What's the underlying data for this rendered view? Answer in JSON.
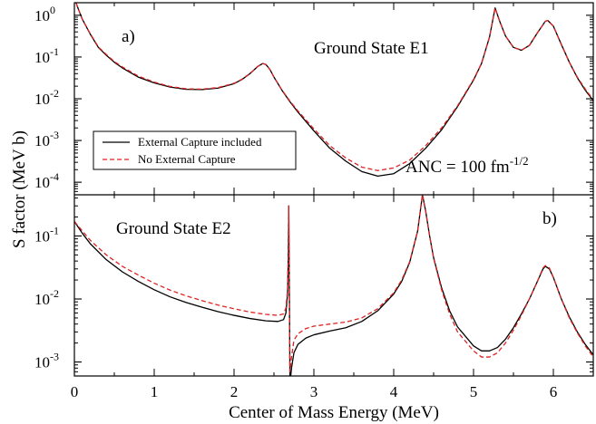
{
  "chart_data": [
    {
      "type": "line",
      "panel_label": "a)",
      "annotation": "Ground State E1",
      "anc_prefix": "ANC = 100 fm",
      "anc_exponent": "-1/2",
      "x_scale": "linear",
      "y_scale": "log",
      "xlim": [
        0,
        6.5
      ],
      "ylim": [
        5e-05,
        2.0
      ],
      "yticks": [
        {
          "value": 1,
          "base": "10",
          "exp": "0"
        },
        {
          "value": 0.1,
          "base": "10",
          "exp": "-1"
        },
        {
          "value": 0.01,
          "base": "10",
          "exp": "-2"
        },
        {
          "value": 0.001,
          "base": "10",
          "exp": "-3"
        },
        {
          "value": 0.0001,
          "base": "10",
          "exp": "-4"
        }
      ],
      "legend": {
        "placement": "center-left",
        "entries": [
          {
            "label": "External Capture included",
            "color": "#000000",
            "dash": "solid"
          },
          {
            "label": "No External Capture",
            "color": "#dd2222",
            "dash": "dashed"
          }
        ]
      },
      "series": [
        {
          "name": "External Capture included",
          "color": "#000000",
          "dash": "solid",
          "points": [
            [
              0.02,
              2.0
            ],
            [
              0.05,
              1.4
            ],
            [
              0.1,
              0.8
            ],
            [
              0.2,
              0.35
            ],
            [
              0.3,
              0.17
            ],
            [
              0.4,
              0.11
            ],
            [
              0.5,
              0.075
            ],
            [
              0.6,
              0.055
            ],
            [
              0.8,
              0.033
            ],
            [
              1.0,
              0.024
            ],
            [
              1.2,
              0.019
            ],
            [
              1.4,
              0.0168
            ],
            [
              1.6,
              0.0166
            ],
            [
              1.8,
              0.018
            ],
            [
              2.0,
              0.023
            ],
            [
              2.1,
              0.029
            ],
            [
              2.2,
              0.04
            ],
            [
              2.3,
              0.06
            ],
            [
              2.36,
              0.07
            ],
            [
              2.4,
              0.066
            ],
            [
              2.45,
              0.05
            ],
            [
              2.5,
              0.033
            ],
            [
              2.6,
              0.016
            ],
            [
              2.7,
              0.0085
            ],
            [
              2.8,
              0.0048
            ],
            [
              3.0,
              0.0017
            ],
            [
              3.2,
              0.00065
            ],
            [
              3.4,
              0.00032
            ],
            [
              3.6,
              0.00018
            ],
            [
              3.8,
              0.00014
            ],
            [
              4.0,
              0.00016
            ],
            [
              4.2,
              0.00028
            ],
            [
              4.4,
              0.00065
            ],
            [
              4.6,
              0.0018
            ],
            [
              4.8,
              0.0065
            ],
            [
              5.0,
              0.028
            ],
            [
              5.1,
              0.07
            ],
            [
              5.2,
              0.3
            ],
            [
              5.27,
              1.5
            ],
            [
              5.33,
              0.7
            ],
            [
              5.4,
              0.32
            ],
            [
              5.5,
              0.17
            ],
            [
              5.6,
              0.145
            ],
            [
              5.7,
              0.19
            ],
            [
              5.8,
              0.38
            ],
            [
              5.9,
              0.72
            ],
            [
              5.93,
              0.75
            ],
            [
              6.0,
              0.55
            ],
            [
              6.1,
              0.2
            ],
            [
              6.2,
              0.075
            ],
            [
              6.3,
              0.032
            ],
            [
              6.4,
              0.016
            ],
            [
              6.5,
              0.009
            ]
          ]
        },
        {
          "name": "No External Capture",
          "color": "#dd2222",
          "dash": "dashed",
          "points": [
            [
              0.02,
              2.0
            ],
            [
              0.05,
              1.4
            ],
            [
              0.1,
              0.8
            ],
            [
              0.2,
              0.36
            ],
            [
              0.3,
              0.175
            ],
            [
              0.4,
              0.115
            ],
            [
              0.5,
              0.078
            ],
            [
              0.6,
              0.058
            ],
            [
              0.8,
              0.035
            ],
            [
              1.0,
              0.025
            ],
            [
              1.2,
              0.0197
            ],
            [
              1.4,
              0.0173
            ],
            [
              1.6,
              0.017
            ],
            [
              1.8,
              0.0185
            ],
            [
              2.0,
              0.0235
            ],
            [
              2.1,
              0.0295
            ],
            [
              2.2,
              0.0405
            ],
            [
              2.3,
              0.06
            ],
            [
              2.36,
              0.07
            ],
            [
              2.4,
              0.066
            ],
            [
              2.45,
              0.05
            ],
            [
              2.5,
              0.033
            ],
            [
              2.6,
              0.0163
            ],
            [
              2.7,
              0.0088
            ],
            [
              2.8,
              0.0051
            ],
            [
              3.0,
              0.0019
            ],
            [
              3.2,
              0.00075
            ],
            [
              3.4,
              0.00038
            ],
            [
              3.6,
              0.00023
            ],
            [
              3.8,
              0.00019
            ],
            [
              4.0,
              0.00022
            ],
            [
              4.2,
              0.00034
            ],
            [
              4.4,
              0.00075
            ],
            [
              4.6,
              0.002
            ],
            [
              4.8,
              0.0068
            ],
            [
              5.0,
              0.029
            ],
            [
              5.1,
              0.07
            ],
            [
              5.2,
              0.3
            ],
            [
              5.27,
              1.5
            ],
            [
              5.33,
              0.7
            ],
            [
              5.4,
              0.32
            ],
            [
              5.5,
              0.17
            ],
            [
              5.6,
              0.147
            ],
            [
              5.7,
              0.19
            ],
            [
              5.8,
              0.38
            ],
            [
              5.9,
              0.72
            ],
            [
              5.93,
              0.75
            ],
            [
              6.0,
              0.55
            ],
            [
              6.1,
              0.2
            ],
            [
              6.2,
              0.075
            ],
            [
              6.3,
              0.033
            ],
            [
              6.4,
              0.017
            ],
            [
              6.5,
              0.0095
            ]
          ]
        }
      ]
    },
    {
      "type": "line",
      "panel_label": "b)",
      "annotation": "Ground State E2",
      "x_scale": "linear",
      "y_scale": "log",
      "xlim": [
        0,
        6.5
      ],
      "ylim": [
        0.0006,
        0.45
      ],
      "yticks": [
        {
          "value": 0.1,
          "base": "10",
          "exp": "-1"
        },
        {
          "value": 0.01,
          "base": "10",
          "exp": "-2"
        },
        {
          "value": 0.001,
          "base": "10",
          "exp": "-3"
        }
      ],
      "series": [
        {
          "name": "External Capture included",
          "color": "#000000",
          "dash": "solid",
          "points": [
            [
              0.0,
              0.17
            ],
            [
              0.1,
              0.11
            ],
            [
              0.2,
              0.075
            ],
            [
              0.4,
              0.042
            ],
            [
              0.6,
              0.027
            ],
            [
              0.8,
              0.019
            ],
            [
              1.0,
              0.014
            ],
            [
              1.2,
              0.0108
            ],
            [
              1.4,
              0.0088
            ],
            [
              1.6,
              0.0074
            ],
            [
              1.8,
              0.0063
            ],
            [
              2.0,
              0.0055
            ],
            [
              2.2,
              0.0049
            ],
            [
              2.4,
              0.0045
            ],
            [
              2.55,
              0.0044
            ],
            [
              2.62,
              0.0047
            ],
            [
              2.65,
              0.006
            ],
            [
              2.67,
              0.012
            ],
            [
              2.68,
              0.05
            ],
            [
              2.685,
              0.3
            ],
            [
              2.69,
              0.05
            ],
            [
              2.7,
              0.0006
            ],
            [
              2.71,
              0.0006
            ],
            [
              2.72,
              0.0008
            ],
            [
              2.75,
              0.0014
            ],
            [
              2.8,
              0.0019
            ],
            [
              2.9,
              0.0024
            ],
            [
              3.0,
              0.0027
            ],
            [
              3.2,
              0.0031
            ],
            [
              3.4,
              0.0035
            ],
            [
              3.6,
              0.0044
            ],
            [
              3.8,
              0.0065
            ],
            [
              4.0,
              0.012
            ],
            [
              4.1,
              0.019
            ],
            [
              4.2,
              0.038
            ],
            [
              4.3,
              0.12
            ],
            [
              4.36,
              0.45
            ],
            [
              4.4,
              0.25
            ],
            [
              4.45,
              0.1
            ],
            [
              4.5,
              0.045
            ],
            [
              4.6,
              0.015
            ],
            [
              4.7,
              0.0065
            ],
            [
              4.8,
              0.0036
            ],
            [
              5.0,
              0.0018
            ],
            [
              5.1,
              0.0015
            ],
            [
              5.2,
              0.0015
            ],
            [
              5.3,
              0.0017
            ],
            [
              5.4,
              0.0023
            ],
            [
              5.5,
              0.0035
            ],
            [
              5.6,
              0.0058
            ],
            [
              5.7,
              0.01
            ],
            [
              5.8,
              0.019
            ],
            [
              5.87,
              0.03
            ],
            [
              5.9,
              0.033
            ],
            [
              5.95,
              0.03
            ],
            [
              6.0,
              0.022
            ],
            [
              6.1,
              0.01
            ],
            [
              6.2,
              0.0052
            ],
            [
              6.3,
              0.003
            ],
            [
              6.4,
              0.0019
            ],
            [
              6.5,
              0.0013
            ]
          ]
        },
        {
          "name": "No External Capture",
          "color": "#dd2222",
          "dash": "dashed",
          "points": [
            [
              0.0,
              0.17
            ],
            [
              0.1,
              0.12
            ],
            [
              0.2,
              0.085
            ],
            [
              0.4,
              0.05
            ],
            [
              0.6,
              0.033
            ],
            [
              0.8,
              0.024
            ],
            [
              1.0,
              0.0178
            ],
            [
              1.2,
              0.0138
            ],
            [
              1.4,
              0.0112
            ],
            [
              1.6,
              0.0094
            ],
            [
              1.8,
              0.008
            ],
            [
              2.0,
              0.007
            ],
            [
              2.2,
              0.0062
            ],
            [
              2.4,
              0.0057
            ],
            [
              2.55,
              0.0055
            ],
            [
              2.62,
              0.0058
            ],
            [
              2.65,
              0.0072
            ],
            [
              2.67,
              0.014
            ],
            [
              2.68,
              0.05
            ],
            [
              2.685,
              0.3
            ],
            [
              2.69,
              0.05
            ],
            [
              2.7,
              0.0007
            ],
            [
              2.71,
              0.0009
            ],
            [
              2.72,
              0.0012
            ],
            [
              2.75,
              0.0022
            ],
            [
              2.8,
              0.0028
            ],
            [
              2.9,
              0.0034
            ],
            [
              3.0,
              0.0037
            ],
            [
              3.2,
              0.004
            ],
            [
              3.4,
              0.0043
            ],
            [
              3.6,
              0.005
            ],
            [
              3.8,
              0.007
            ],
            [
              4.0,
              0.0125
            ],
            [
              4.1,
              0.02
            ],
            [
              4.2,
              0.039
            ],
            [
              4.3,
              0.12
            ],
            [
              4.36,
              0.45
            ],
            [
              4.4,
              0.25
            ],
            [
              4.45,
              0.1
            ],
            [
              4.5,
              0.044
            ],
            [
              4.6,
              0.014
            ],
            [
              4.7,
              0.0058
            ],
            [
              4.8,
              0.003
            ],
            [
              5.0,
              0.0015
            ],
            [
              5.1,
              0.0012
            ],
            [
              5.2,
              0.0012
            ],
            [
              5.3,
              0.0014
            ],
            [
              5.4,
              0.002
            ],
            [
              5.5,
              0.0032
            ],
            [
              5.6,
              0.0055
            ],
            [
              5.7,
              0.01
            ],
            [
              5.8,
              0.019
            ],
            [
              5.87,
              0.031
            ],
            [
              5.9,
              0.034
            ],
            [
              5.95,
              0.031
            ],
            [
              6.0,
              0.022
            ],
            [
              6.1,
              0.01
            ],
            [
              6.2,
              0.005
            ],
            [
              6.3,
              0.0029
            ],
            [
              6.4,
              0.0018
            ],
            [
              6.5,
              0.0012
            ]
          ]
        }
      ]
    }
  ],
  "axes": {
    "xlabel": "Center of Mass Energy (MeV)",
    "ylabel": "S factor (MeV b)",
    "xticks": [
      {
        "value": 0,
        "label": "0"
      },
      {
        "value": 1,
        "label": "1"
      },
      {
        "value": 2,
        "label": "2"
      },
      {
        "value": 3,
        "label": "3"
      },
      {
        "value": 4,
        "label": "4"
      },
      {
        "value": 5,
        "label": "5"
      },
      {
        "value": 6,
        "label": "6"
      }
    ]
  }
}
